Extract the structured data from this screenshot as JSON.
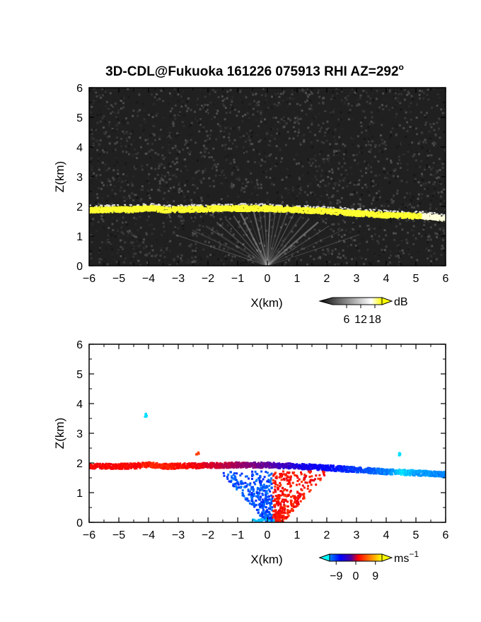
{
  "chart_data": [
    {
      "type": "heatmap",
      "name": "intensity",
      "title": "3D-CDL@Fukuoka 161226 075913 RHI AZ=292",
      "title_super": "o",
      "xlabel": "X(km)",
      "ylabel": "Z(km)",
      "xlim": [
        -6,
        6
      ],
      "ylim": [
        0,
        6
      ],
      "x_ticks": [
        -6,
        -5,
        -4,
        -3,
        -2,
        -1,
        0,
        1,
        2,
        3,
        4,
        5,
        6
      ],
      "y_ticks": [
        0,
        1,
        2,
        3,
        4,
        5,
        6
      ],
      "background_color": "#202020",
      "colorbar": {
        "unit": "dB",
        "ticks": [
          6,
          12,
          18
        ],
        "range": [
          0,
          21
        ],
        "colors": [
          "#0a0a0a",
          "#ffffff",
          "#ffff00"
        ]
      },
      "layers": [
        {
          "feature": "strong echo layer",
          "x": [
            -6,
            -4.5,
            -4,
            -3.5,
            -2,
            -1,
            0,
            1,
            2,
            3,
            4,
            5.2
          ],
          "z": [
            1.92,
            1.93,
            1.98,
            1.92,
            1.95,
            1.97,
            1.96,
            1.92,
            1.87,
            1.8,
            1.74,
            1.7
          ],
          "value_db": 19
        },
        {
          "feature": "weak tail",
          "x": [
            5.2,
            5.6,
            6
          ],
          "z": [
            1.7,
            1.67,
            1.62
          ],
          "value_db": 12
        }
      ]
    },
    {
      "type": "heatmap",
      "name": "velocity",
      "xlabel": "X(km)",
      "ylabel": "Z(km)",
      "xlim": [
        -6,
        6
      ],
      "ylim": [
        0,
        6
      ],
      "x_ticks": [
        -6,
        -5,
        -4,
        -3,
        -2,
        -1,
        0,
        1,
        2,
        3,
        4,
        5,
        6
      ],
      "y_ticks": [
        0,
        1,
        2,
        3,
        4,
        5,
        6
      ],
      "colorbar": {
        "unit": "ms",
        "unit_super": "−1",
        "ticks": [
          -9,
          0,
          9
        ],
        "range": [
          -12,
          12
        ],
        "colors": [
          "#00ffff",
          "#0000ff",
          "#ff0000",
          "#ffff00"
        ]
      },
      "layers": [
        {
          "feature": "layer",
          "x": [
            -6,
            -4.5,
            -4,
            -3.5,
            -2,
            -1,
            0,
            1,
            2,
            3,
            4,
            4.5,
            5,
            6
          ],
          "z": [
            1.92,
            1.93,
            1.98,
            1.92,
            1.95,
            1.97,
            1.96,
            1.92,
            1.87,
            1.8,
            1.74,
            1.72,
            1.7,
            1.64
          ],
          "velocity_ms": [
            4,
            4,
            5,
            5,
            3,
            1,
            -1,
            -3,
            -4,
            -6,
            -8,
            -11,
            -9,
            -8
          ]
        },
        {
          "feature": "isolated echo",
          "x": -4.15,
          "z": 3.65,
          "velocity_ms": -11
        },
        {
          "feature": "isolated echo",
          "x": 4.4,
          "z": 2.35,
          "velocity_ms": -11
        },
        {
          "feature": "isolated echo",
          "x": -2.4,
          "z": 2.35,
          "velocity_ms": 6
        }
      ]
    }
  ]
}
